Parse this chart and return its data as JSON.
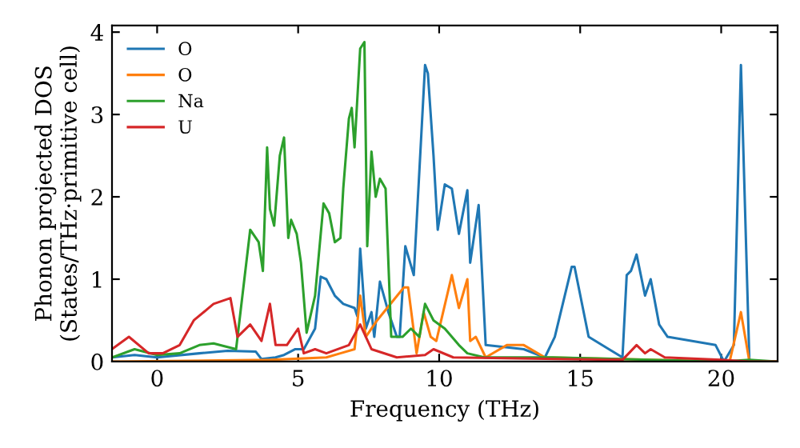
{
  "chart_data": {
    "type": "line",
    "xlabel": "Frequency (THz)",
    "ylabel": "Phonon projected DOS\n(States/THz·primitive cell)",
    "xlim": [
      -1.6,
      22
    ],
    "ylim": [
      0,
      4.08
    ],
    "xticks": [
      0,
      5,
      10,
      15,
      20
    ],
    "yticks": [
      0,
      1,
      2,
      3,
      4
    ],
    "grid": false,
    "legend": "top left",
    "marker": "none",
    "line_style": "solid",
    "series": [
      {
        "name": "O",
        "color": "#1f77b4",
        "x": [
          -1.6,
          -0.8,
          0,
          1.5,
          2.5,
          3.5,
          3.7,
          4.2,
          4.5,
          4.9,
          5.2,
          5.6,
          5.8,
          6.0,
          6.3,
          6.6,
          7.0,
          7.1,
          7.2,
          7.4,
          7.6,
          7.7,
          7.9,
          8.2,
          8.5,
          8.6,
          8.8,
          9.1,
          9.5,
          9.6,
          9.8,
          9.95,
          10.2,
          10.45,
          10.7,
          11.0,
          11.1,
          11.4,
          11.65,
          13.0,
          13.75,
          14.1,
          14.7,
          14.8,
          15.3,
          16.5,
          16.65,
          16.8,
          17.0,
          17.3,
          17.5,
          17.8,
          18.1,
          19.8,
          20.1,
          20.45,
          20.7,
          21.0,
          22
        ],
        "values": [
          0.05,
          0.08,
          0.05,
          0.1,
          0.13,
          0.12,
          0.03,
          0.05,
          0.08,
          0.15,
          0.15,
          0.4,
          1.03,
          1.0,
          0.8,
          0.7,
          0.65,
          0.55,
          1.37,
          0.4,
          0.6,
          0.3,
          0.97,
          0.6,
          0.3,
          0.3,
          1.4,
          1.05,
          3.6,
          3.5,
          2.5,
          1.6,
          2.15,
          2.1,
          1.55,
          2.08,
          1.2,
          1.9,
          0.2,
          0.15,
          0.05,
          0.3,
          1.15,
          1.15,
          0.3,
          0.05,
          1.05,
          1.1,
          1.3,
          0.8,
          1.0,
          0.45,
          0.3,
          0.2,
          0.0,
          0.2,
          3.6,
          0.0,
          0.0
        ]
      },
      {
        "name": "O",
        "color": "#ff7f0e",
        "x": [
          -1.6,
          4.0,
          6.0,
          6.5,
          7.0,
          7.2,
          7.4,
          7.8,
          8.75,
          8.9,
          9.2,
          9.45,
          9.7,
          9.9,
          10.45,
          10.7,
          11.0,
          11.1,
          11.3,
          11.65,
          12.4,
          13.0,
          13.75,
          20.3,
          20.7,
          21.0,
          22
        ],
        "values": [
          0.0,
          0.02,
          0.05,
          0.1,
          0.15,
          0.8,
          0.3,
          0.5,
          0.9,
          0.9,
          0.1,
          0.6,
          0.3,
          0.25,
          1.05,
          0.65,
          1.0,
          0.25,
          0.3,
          0.05,
          0.2,
          0.2,
          0.05,
          0.0,
          0.6,
          0.0,
          0.0
        ]
      },
      {
        "name": "Na",
        "color": "#2ca02c",
        "x": [
          -1.6,
          -0.8,
          0,
          0.8,
          1.5,
          2.0,
          2.8,
          3.3,
          3.6,
          3.75,
          3.9,
          4.0,
          4.15,
          4.35,
          4.5,
          4.65,
          4.75,
          4.95,
          5.1,
          5.3,
          5.6,
          5.9,
          6.1,
          6.3,
          6.5,
          6.6,
          6.8,
          6.9,
          7.0,
          7.2,
          7.35,
          7.45,
          7.6,
          7.75,
          7.9,
          8.1,
          8.3,
          8.7,
          9.0,
          9.3,
          9.5,
          9.8,
          10.2,
          10.7,
          11.0,
          11.6,
          14.0,
          20.0,
          21.0,
          22
        ],
        "values": [
          0.05,
          0.15,
          0.08,
          0.1,
          0.2,
          0.22,
          0.15,
          1.6,
          1.45,
          1.1,
          2.6,
          1.85,
          1.65,
          2.5,
          2.72,
          1.5,
          1.72,
          1.55,
          1.2,
          0.35,
          0.8,
          1.92,
          1.8,
          1.45,
          1.5,
          2.1,
          2.95,
          3.08,
          2.6,
          3.8,
          3.88,
          1.4,
          2.55,
          2.0,
          2.22,
          2.1,
          0.3,
          0.3,
          0.4,
          0.3,
          0.7,
          0.5,
          0.4,
          0.2,
          0.1,
          0.05,
          0.05,
          0.0,
          0.02,
          0.0
        ]
      },
      {
        "name": "U",
        "color": "#d62728",
        "x": [
          -1.6,
          -1.0,
          -0.3,
          0.2,
          0.8,
          1.3,
          2.0,
          2.6,
          2.85,
          3.3,
          3.7,
          4.0,
          4.2,
          4.6,
          5.0,
          5.2,
          5.6,
          6.0,
          6.8,
          7.2,
          7.6,
          8.5,
          9.5,
          9.8,
          10.5,
          16.5,
          17.0,
          17.3,
          17.5,
          18.0,
          20.0,
          21.0,
          22
        ],
        "values": [
          0.15,
          0.3,
          0.1,
          0.1,
          0.2,
          0.5,
          0.7,
          0.77,
          0.3,
          0.45,
          0.25,
          0.7,
          0.2,
          0.2,
          0.4,
          0.1,
          0.15,
          0.1,
          0.2,
          0.45,
          0.15,
          0.05,
          0.08,
          0.15,
          0.05,
          0.02,
          0.2,
          0.1,
          0.15,
          0.05,
          0.02,
          0.0,
          0.0
        ]
      }
    ]
  }
}
